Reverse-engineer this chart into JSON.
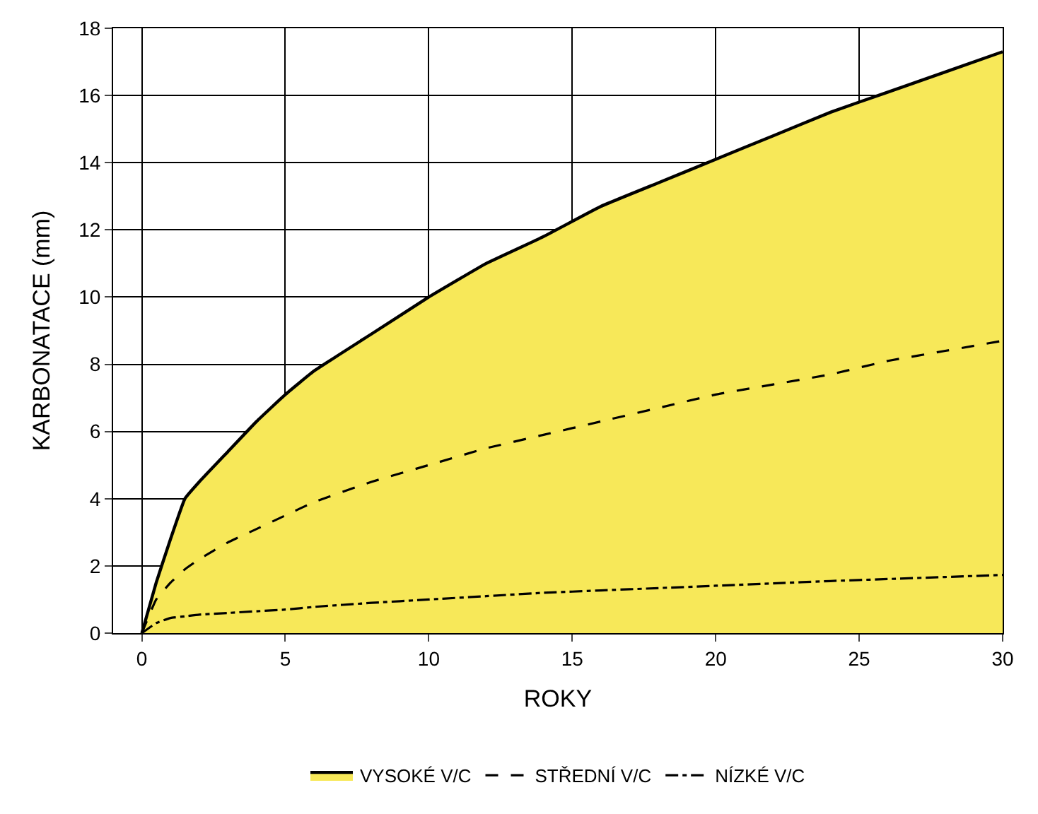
{
  "chart_data": {
    "type": "line",
    "xlabel": "ROKY",
    "ylabel": "KARBONATACE (mm)",
    "x": [
      0,
      0.5,
      1,
      1.5,
      2,
      3,
      4,
      5,
      6,
      8,
      10,
      12,
      14,
      16,
      18,
      20,
      22,
      24,
      26,
      28,
      30
    ],
    "series": [
      {
        "name": "VYSOKÉ V/C",
        "type": "area",
        "color": "#000000",
        "line_style": "solid",
        "values": [
          0,
          1.5,
          2.8,
          4.0,
          4.5,
          5.4,
          6.3,
          7.1,
          7.8,
          8.9,
          10,
          11,
          11.8,
          12.7,
          13.4,
          14.1,
          14.8,
          15.5,
          16.1,
          16.7,
          17.3
        ]
      },
      {
        "name": "STŘEDNÍ V/C",
        "color": "#000000",
        "line_style": "dashed",
        "values": [
          0,
          1.0,
          1.5,
          1.9,
          2.2,
          2.7,
          3.1,
          3.5,
          3.9,
          4.5,
          5.0,
          5.5,
          5.9,
          6.3,
          6.7,
          7.1,
          7.4,
          7.7,
          8.1,
          8.4,
          8.7
        ]
      },
      {
        "name": "NÍZKÉ V/C",
        "color": "#000000",
        "line_style": "dashdot",
        "values": [
          0,
          0.3,
          0.45,
          0.5,
          0.55,
          0.6,
          0.65,
          0.7,
          0.78,
          0.9,
          1.0,
          1.1,
          1.2,
          1.27,
          1.34,
          1.41,
          1.48,
          1.55,
          1.61,
          1.67,
          1.73
        ]
      }
    ],
    "xlim": [
      -1,
      30
    ],
    "xticks": [
      0,
      5,
      10,
      15,
      20,
      25,
      30
    ],
    "ylim": [
      0,
      18
    ],
    "yticks": [
      0,
      2,
      4,
      6,
      8,
      10,
      12,
      14,
      16,
      18
    ],
    "color": "#f7e859",
    "grid": true,
    "legend": "bottom",
    "marker": "none"
  }
}
